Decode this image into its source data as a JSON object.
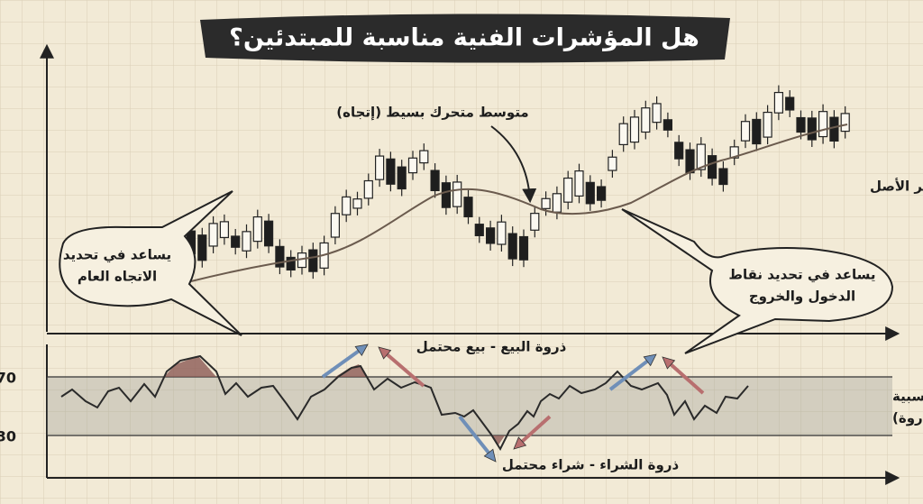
{
  "title": "هل المؤشرات الفنية مناسبة للمبتدئين؟",
  "price_chart": {
    "asset_label": "سعر الأصل",
    "moving_average_label": "متوسط متحرك بسيط (إتجاه)",
    "callout_trend": [
      "يساعد في تحديد",
      "الاتجاه العام"
    ],
    "callout_entry": [
      "يساعد في تحديد نقاط",
      "الدخول والخروج"
    ]
  },
  "rsi_chart": {
    "label": [
      "مؤشر القوة النسبية",
      "(مستويات ذروة)"
    ],
    "levels": [
      70,
      30
    ],
    "overbought_label": "ذروة البيع - بيع محتمل",
    "oversold_label": "ذروة الشراء - شراء محتمل"
  }
}
